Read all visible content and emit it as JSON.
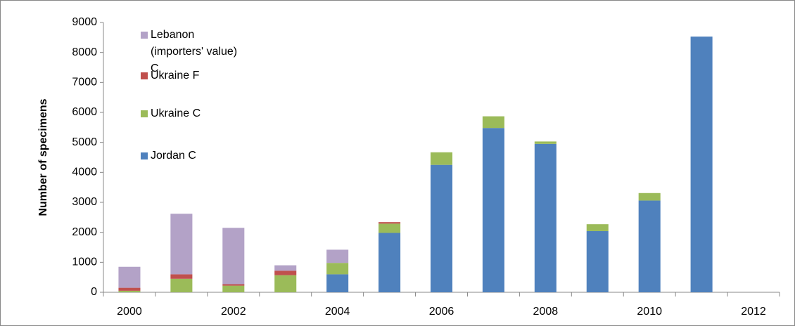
{
  "chart_data": {
    "type": "stacked-bar",
    "y_label": "Number of specimens",
    "categories": [
      "2000",
      null,
      "2002",
      null,
      "2004",
      null,
      "2006",
      null,
      "2008",
      null,
      "2010",
      null,
      "2012"
    ],
    "series": [
      {
        "name": "Jordan C",
        "color": "#4f81bd",
        "values": [
          null,
          null,
          null,
          null,
          600,
          1980,
          4250,
          5480,
          4950,
          2040,
          3060,
          8530,
          null
        ]
      },
      {
        "name": "Ukraine C",
        "color": "#9bbb59",
        "values": [
          50,
          450,
          220,
          570,
          380,
          310,
          420,
          390,
          80,
          230,
          250,
          null,
          null
        ]
      },
      {
        "name": "Ukraine F",
        "color": "#c0504d",
        "values": [
          100,
          150,
          50,
          150,
          null,
          50,
          null,
          null,
          null,
          null,
          null,
          null,
          null
        ]
      },
      {
        "name": "Lebanon (importers' value) C",
        "color": "#b3a2c7",
        "values": [
          700,
          2020,
          1880,
          180,
          440,
          null,
          null,
          null,
          null,
          null,
          null,
          null,
          null
        ]
      }
    ],
    "ylim": [
      0,
      9000
    ],
    "yticks": [
      0,
      1000,
      2000,
      3000,
      4000,
      5000,
      6000,
      7000,
      8000,
      9000
    ]
  }
}
